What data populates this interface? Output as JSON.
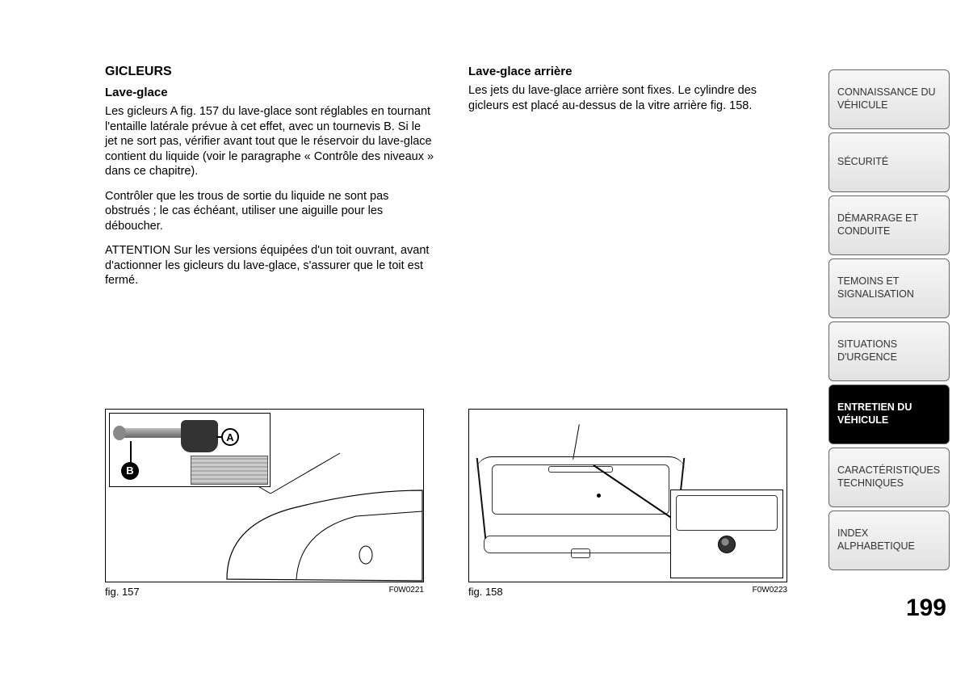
{
  "left": {
    "title": "GICLEURS",
    "sub": "Lave-glace",
    "p1": "Les gicleurs A fig. 157 du lave-glace sont réglables en tournant l'entaille latérale prévue à cet effet, avec un tournevis B. Si le jet ne sort pas, vérifier avant tout que le réservoir du lave-glace contient du liquide (voir le paragraphe « Contrôle des niveaux » dans ce chapitre).",
    "p2": "Contrôler que les trous de sortie du liquide ne sont pas obstrués ; le cas échéant, utiliser une aiguille pour les déboucher.",
    "p3": "ATTENTION Sur les versions équipées d'un toit ouvrant, avant d'actionner les gicleurs du lave-glace, s'assurer que le toit est fermé.",
    "fig": {
      "caption": "fig. 157",
      "code": "F0W0221",
      "calloutA": "A",
      "calloutB": "B"
    }
  },
  "right": {
    "sub": "Lave-glace arrière",
    "p1": "Les jets du lave-glace arrière sont fixes. Le cylindre des gicleurs est placé au-dessus de la vitre arrière fig. 158.",
    "fig": {
      "caption": "fig. 158",
      "code": "F0W0223"
    }
  },
  "tabs": [
    {
      "label": "CONNAISSANCE DU VÉHICULE",
      "active": false
    },
    {
      "label": "SÉCURITÉ",
      "active": false
    },
    {
      "label": "DÉMARRAGE ET CONDUITE",
      "active": false
    },
    {
      "label": "TEMOINS ET SIGNALISATION",
      "active": false
    },
    {
      "label": "SITUATIONS D'URGENCE",
      "active": false
    },
    {
      "label": "ENTRETIEN DU VÉHICULE",
      "active": true
    },
    {
      "label": "CARACTÉRISTIQUES TECHNIQUES",
      "active": false
    },
    {
      "label": "INDEX ALPHABETIQUE",
      "active": false
    }
  ],
  "pagenum": "199"
}
